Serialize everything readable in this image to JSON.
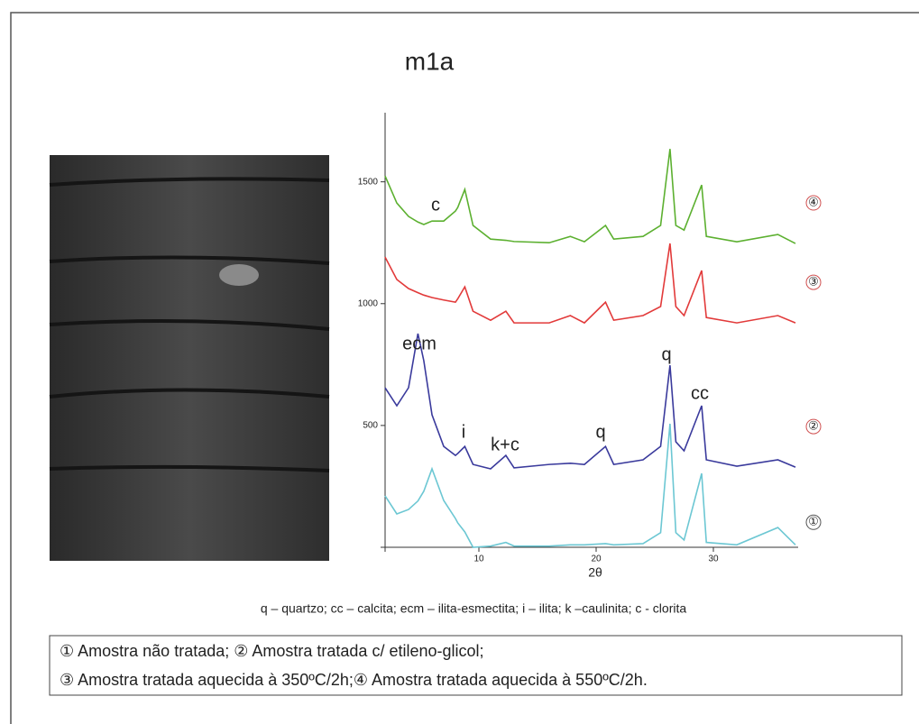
{
  "chart_data": {
    "type": "line",
    "title": "m1a",
    "x_label": "2θ",
    "x": [
      2,
      3,
      4,
      4.8,
      5.3,
      6,
      7,
      8,
      8.2,
      8.8,
      9.5,
      11,
      12.3,
      13,
      16,
      17.8,
      19,
      20.8,
      21.5,
      24,
      25.5,
      26.3,
      26.8,
      27.5,
      29,
      29.4,
      32,
      35.5,
      37
    ],
    "series": [
      {
        "name": "①",
        "color": "#6cc7d3",
        "values": [
          211,
          137,
          155,
          190,
          230,
          322,
          192,
          118,
          100,
          63,
          0,
          5,
          20,
          5,
          5,
          10,
          10,
          15,
          10,
          15,
          60,
          507,
          60,
          30,
          303,
          20,
          10,
          81,
          10
        ]
      },
      {
        "name": "②",
        "color": "#3a3a9c",
        "values": [
          655,
          581,
          655,
          877,
          766,
          544,
          414,
          377,
          385,
          414,
          340,
          322,
          377,
          326,
          340,
          345,
          340,
          414,
          340,
          359,
          414,
          747,
          433,
          396,
          581,
          359,
          333,
          359,
          329
        ]
      },
      {
        "name": "③",
        "color": "#e23a3a",
        "values": [
          1191,
          1099,
          1062,
          1045,
          1035,
          1025,
          1015,
          1006,
          1020,
          1069,
          969,
          932,
          969,
          921,
          921,
          951,
          921,
          1006,
          932,
          951,
          988,
          1247,
          988,
          951,
          1136,
          943,
          921,
          951,
          921
        ]
      },
      {
        "name": "④",
        "color": "#5cb030",
        "values": [
          1524,
          1413,
          1358,
          1335,
          1325,
          1339,
          1339,
          1380,
          1395,
          1469,
          1321,
          1265,
          1260,
          1255,
          1250,
          1276,
          1254,
          1321,
          1265,
          1276,
          1321,
          1635,
          1321,
          1302,
          1487,
          1276,
          1254,
          1284,
          1247
        ]
      }
    ],
    "xlim": [
      2,
      37
    ],
    "ylim": [
      0,
      1780
    ],
    "xticks": [
      10,
      20,
      30
    ],
    "yticks": [
      500,
      1000,
      1500
    ],
    "annotations": [
      "c",
      "ecm",
      "i",
      "k+c",
      "q",
      "q",
      "cc"
    ],
    "caption": "q – quartzo; cc – calcita; ecm – ilita-esmectita; i – ilita; k –caulinita; c - clorita",
    "legend_text": [
      "① Amostra não tratada; ② Amostra tratada c/ etileno-glicol;",
      "③ Amostra tratada aquecida à 350ºC/2h;④ Amostra tratada aquecida à 550ºC/2h."
    ]
  }
}
